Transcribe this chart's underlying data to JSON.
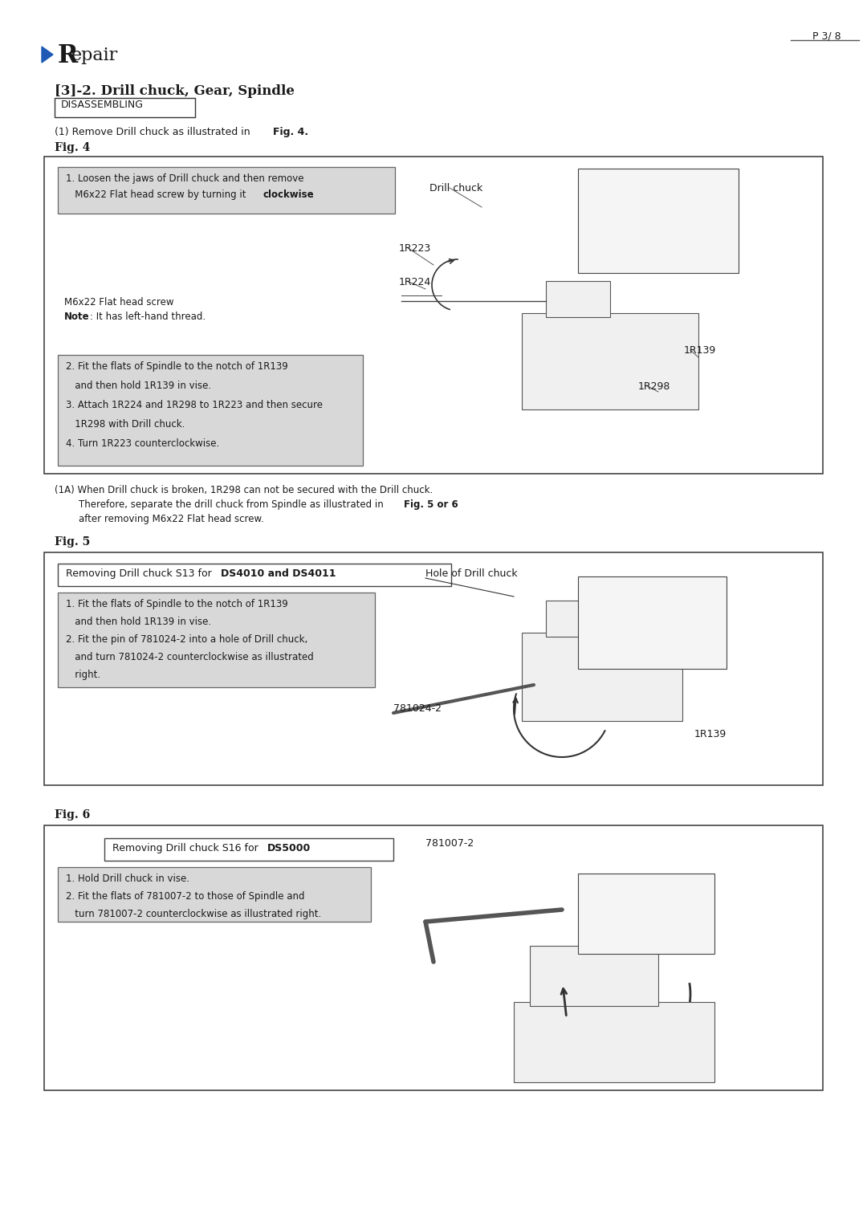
{
  "page_number": "P 3/ 8",
  "title_R": "R",
  "title_epair": "epair",
  "subtitle": "[3]-2. Drill chuck, Gear, Spindle",
  "disassembling_label": "DISASSEMBLING",
  "intro_line1": "(1) Remove Drill chuck as illustrated in ",
  "intro_bold": "Fig. 4",
  "intro_end": ".",
  "fig4_label": "Fig. 4",
  "fig4_box1_line1": "1. Loosen the jaws of Drill chuck and then remove",
  "fig4_box1_line2a": "   M6x22 Flat head screw by turning it ",
  "fig4_box1_bold": "clockwise",
  "fig4_box1_end": ".",
  "fig4_cap1": "M6x22 Flat head screw",
  "fig4_cap2a": "Note",
  "fig4_cap2b": ": It has left-hand thread.",
  "fig4_label_dc": "Drill chuck",
  "fig4_label_1R223": "1R223",
  "fig4_label_1R224": "1R224",
  "fig4_label_1R139": "1R139",
  "fig4_label_1R298": "1R298",
  "fig4_box2_lines": [
    "2. Fit the flats of Spindle to the notch of 1R139",
    "   and then hold 1R139 in vise.",
    "3. Attach 1R224 and 1R298 to 1R223 and then secure",
    "   1R298 with Drill chuck.",
    "4. Turn 1R223 counterclockwise."
  ],
  "note1a_line1": "(1A) When Drill chuck is broken, 1R298 can not be secured with the Drill chuck.",
  "note1a_line2a": "        Therefore, separate the drill chuck from Spindle as illustrated in ",
  "note1a_line2b": "Fig. 5 or 6",
  "note1a_line3": "        after removing M6x22 Flat head screw.",
  "fig5_label": "Fig. 5",
  "fig5_header_a": "Removing Drill chuck S13 for ",
  "fig5_header_b": "DS4010 and DS4011",
  "fig5_box_lines": [
    "1. Fit the flats of Spindle to the notch of 1R139",
    "   and then hold 1R139 in vise.",
    "2. Fit the pin of 781024-2 into a hole of Drill chuck,",
    "   and turn 781024-2 counterclockwise as illustrated",
    "   right."
  ],
  "fig5_label_hole": "Hole of Drill chuck",
  "fig5_label_781024": "781024-2",
  "fig5_label_1R139": "1R139",
  "fig6_label": "Fig. 6",
  "fig6_header_a": "Removing Drill chuck S16 for ",
  "fig6_header_b": "DS5000",
  "fig6_box_lines": [
    "1. Hold Drill chuck in vise.",
    "2. Fit the flats of 781007-2 to those of Spindle and",
    "   turn 781007-2 counterclockwise as illustrated right."
  ],
  "fig6_label_781007": "781007-2",
  "bg_color": "#ffffff",
  "text_color": "#1a1a1a",
  "box_bg_gray": "#d8d8d8",
  "box_bg_white": "#ffffff",
  "box_border": "#555555",
  "page_width": 10.8,
  "page_height": 15.27,
  "dpi": 100
}
